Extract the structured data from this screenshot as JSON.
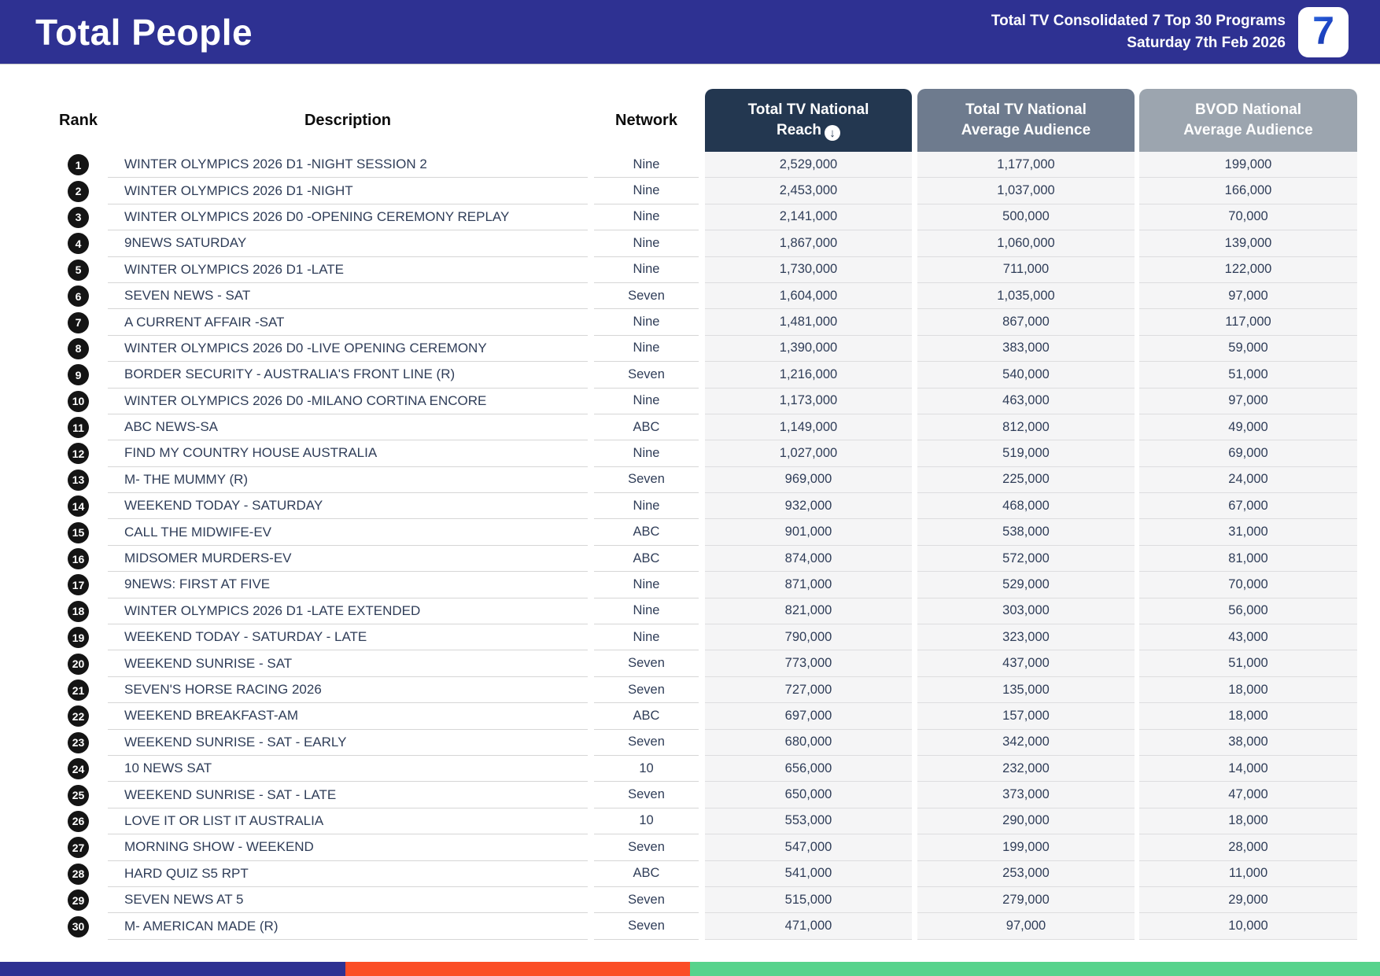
{
  "header": {
    "title": "Total People",
    "subtitle_line1": "Total TV Consolidated 7 Top 30 Programs",
    "subtitle_line2": "Saturday 7th Feb 2026",
    "logo_text": "7"
  },
  "table": {
    "columns": {
      "rank": "Rank",
      "description": "Description",
      "network": "Network",
      "reach_line1": "Total TV National",
      "reach_line2": "Reach",
      "avg_line1": "Total TV National",
      "avg_line2": "Average Audience",
      "bvod_line1": "BVOD National",
      "bvod_line2": "Average Audience"
    },
    "sort_icon": "↓",
    "rows": [
      {
        "rank": "1",
        "description": "WINTER OLYMPICS 2026 D1 -NIGHT SESSION 2",
        "network": "Nine",
        "reach": "2,529,000",
        "avg": "1,177,000",
        "bvod": "199,000"
      },
      {
        "rank": "2",
        "description": "WINTER OLYMPICS 2026 D1 -NIGHT",
        "network": "Nine",
        "reach": "2,453,000",
        "avg": "1,037,000",
        "bvod": "166,000"
      },
      {
        "rank": "3",
        "description": "WINTER OLYMPICS 2026 D0 -OPENING CEREMONY REPLAY",
        "network": "Nine",
        "reach": "2,141,000",
        "avg": "500,000",
        "bvod": "70,000"
      },
      {
        "rank": "4",
        "description": "9NEWS SATURDAY",
        "network": "Nine",
        "reach": "1,867,000",
        "avg": "1,060,000",
        "bvod": "139,000"
      },
      {
        "rank": "5",
        "description": "WINTER OLYMPICS 2026 D1 -LATE",
        "network": "Nine",
        "reach": "1,730,000",
        "avg": "711,000",
        "bvod": "122,000"
      },
      {
        "rank": "6",
        "description": "SEVEN NEWS - SAT",
        "network": "Seven",
        "reach": "1,604,000",
        "avg": "1,035,000",
        "bvod": "97,000"
      },
      {
        "rank": "7",
        "description": "A CURRENT AFFAIR -SAT",
        "network": "Nine",
        "reach": "1,481,000",
        "avg": "867,000",
        "bvod": "117,000"
      },
      {
        "rank": "8",
        "description": "WINTER OLYMPICS 2026 D0 -LIVE OPENING CEREMONY",
        "network": "Nine",
        "reach": "1,390,000",
        "avg": "383,000",
        "bvod": "59,000"
      },
      {
        "rank": "9",
        "description": "BORDER SECURITY - AUSTRALIA'S FRONT LINE (R)",
        "network": "Seven",
        "reach": "1,216,000",
        "avg": "540,000",
        "bvod": "51,000"
      },
      {
        "rank": "10",
        "description": "WINTER OLYMPICS 2026 D0 -MILANO CORTINA ENCORE",
        "network": "Nine",
        "reach": "1,173,000",
        "avg": "463,000",
        "bvod": "97,000"
      },
      {
        "rank": "11",
        "description": "ABC NEWS-SA",
        "network": "ABC",
        "reach": "1,149,000",
        "avg": "812,000",
        "bvod": "49,000"
      },
      {
        "rank": "12",
        "description": "FIND MY COUNTRY HOUSE AUSTRALIA",
        "network": "Nine",
        "reach": "1,027,000",
        "avg": "519,000",
        "bvod": "69,000"
      },
      {
        "rank": "13",
        "description": "M- THE MUMMY (R)",
        "network": "Seven",
        "reach": "969,000",
        "avg": "225,000",
        "bvod": "24,000"
      },
      {
        "rank": "14",
        "description": "WEEKEND TODAY - SATURDAY",
        "network": "Nine",
        "reach": "932,000",
        "avg": "468,000",
        "bvod": "67,000"
      },
      {
        "rank": "15",
        "description": "CALL THE MIDWIFE-EV",
        "network": "ABC",
        "reach": "901,000",
        "avg": "538,000",
        "bvod": "31,000"
      },
      {
        "rank": "16",
        "description": "MIDSOMER MURDERS-EV",
        "network": "ABC",
        "reach": "874,000",
        "avg": "572,000",
        "bvod": "81,000"
      },
      {
        "rank": "17",
        "description": "9NEWS: FIRST AT FIVE",
        "network": "Nine",
        "reach": "871,000",
        "avg": "529,000",
        "bvod": "70,000"
      },
      {
        "rank": "18",
        "description": "WINTER OLYMPICS 2026 D1 -LATE EXTENDED",
        "network": "Nine",
        "reach": "821,000",
        "avg": "303,000",
        "bvod": "56,000"
      },
      {
        "rank": "19",
        "description": "WEEKEND TODAY - SATURDAY - LATE",
        "network": "Nine",
        "reach": "790,000",
        "avg": "323,000",
        "bvod": "43,000"
      },
      {
        "rank": "20",
        "description": "WEEKEND SUNRISE - SAT",
        "network": "Seven",
        "reach": "773,000",
        "avg": "437,000",
        "bvod": "51,000"
      },
      {
        "rank": "21",
        "description": "SEVEN'S HORSE RACING 2026",
        "network": "Seven",
        "reach": "727,000",
        "avg": "135,000",
        "bvod": "18,000"
      },
      {
        "rank": "22",
        "description": "WEEKEND BREAKFAST-AM",
        "network": "ABC",
        "reach": "697,000",
        "avg": "157,000",
        "bvod": "18,000"
      },
      {
        "rank": "23",
        "description": "WEEKEND SUNRISE - SAT - EARLY",
        "network": "Seven",
        "reach": "680,000",
        "avg": "342,000",
        "bvod": "38,000"
      },
      {
        "rank": "24",
        "description": "10 NEWS SAT",
        "network": "10",
        "reach": "656,000",
        "avg": "232,000",
        "bvod": "14,000"
      },
      {
        "rank": "25",
        "description": "WEEKEND SUNRISE - SAT - LATE",
        "network": "Seven",
        "reach": "650,000",
        "avg": "373,000",
        "bvod": "47,000"
      },
      {
        "rank": "26",
        "description": "LOVE IT OR LIST IT AUSTRALIA",
        "network": "10",
        "reach": "553,000",
        "avg": "290,000",
        "bvod": "18,000"
      },
      {
        "rank": "27",
        "description": "MORNING SHOW - WEEKEND",
        "network": "Seven",
        "reach": "547,000",
        "avg": "199,000",
        "bvod": "28,000"
      },
      {
        "rank": "28",
        "description": "HARD QUIZ S5 RPT",
        "network": "ABC",
        "reach": "541,000",
        "avg": "253,000",
        "bvod": "11,000"
      },
      {
        "rank": "29",
        "description": "SEVEN NEWS AT 5",
        "network": "Seven",
        "reach": "515,000",
        "avg": "279,000",
        "bvod": "29,000"
      },
      {
        "rank": "30",
        "description": "M- AMERICAN MADE (R)",
        "network": "Seven",
        "reach": "471,000",
        "avg": "97,000",
        "bvod": "10,000"
      }
    ]
  },
  "colors": {
    "banner_blue": "#2e3192",
    "reach_header": "#233750",
    "avg_header": "#6e7b8e",
    "bvod_header": "#9ca5af",
    "footer_segments": [
      "#2e3192",
      "#fb4e26",
      "#57d38c"
    ]
  }
}
